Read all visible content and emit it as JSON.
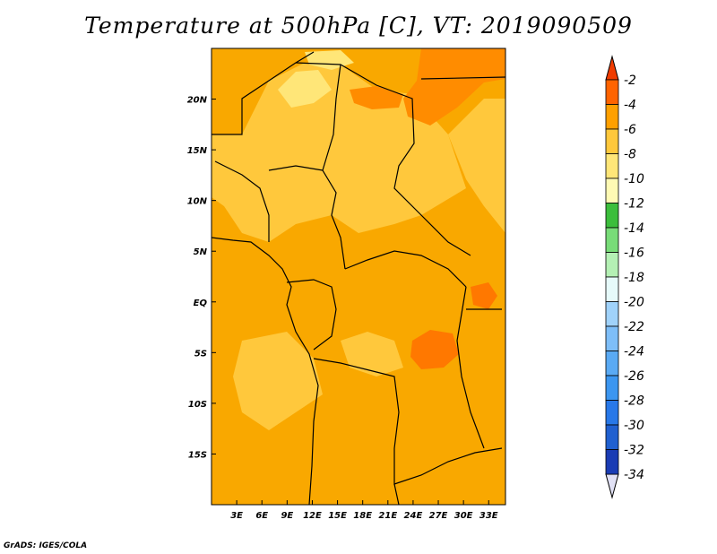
{
  "title": "Temperature at 500hPa [C], VT: 2019090509",
  "credit": "GrADS: IGES/COLA",
  "map": {
    "variable": "Temperature at 500hPa",
    "units": "C",
    "valid_time": "2019090509",
    "lon_range": [
      0,
      35
    ],
    "lat_range": [
      -20,
      25
    ],
    "background_color": "#f9a800",
    "lon_ticks": [
      {
        "value": 3,
        "label": "3E"
      },
      {
        "value": 6,
        "label": "6E"
      },
      {
        "value": 9,
        "label": "9E"
      },
      {
        "value": 12,
        "label": "12E"
      },
      {
        "value": 15,
        "label": "15E"
      },
      {
        "value": 18,
        "label": "18E"
      },
      {
        "value": 21,
        "label": "21E"
      },
      {
        "value": 24,
        "label": "24E"
      },
      {
        "value": 27,
        "label": "27E"
      },
      {
        "value": 30,
        "label": "30E"
      },
      {
        "value": 33,
        "label": "33E"
      }
    ],
    "lat_ticks": [
      {
        "value": 20,
        "label": "20N"
      },
      {
        "value": 15,
        "label": "15N"
      },
      {
        "value": 10,
        "label": "10N"
      },
      {
        "value": 5,
        "label": "5N"
      },
      {
        "value": 0,
        "label": "EQ"
      },
      {
        "value": -5,
        "label": "5S"
      },
      {
        "value": -10,
        "label": "10S"
      },
      {
        "value": -15,
        "label": "15S"
      }
    ]
  },
  "colorbar": {
    "levels": [
      {
        "value": -34,
        "label": "-34",
        "color": "#0a0a78"
      },
      {
        "value": -32,
        "label": "-32",
        "color": "#1a3cb4"
      },
      {
        "value": -30,
        "label": "-30",
        "color": "#2060d0"
      },
      {
        "value": -28,
        "label": "-28",
        "color": "#2878e8"
      },
      {
        "value": -26,
        "label": "-26",
        "color": "#3c96f0"
      },
      {
        "value": -24,
        "label": "-24",
        "color": "#5aaaf4"
      },
      {
        "value": -22,
        "label": "-22",
        "color": "#7ebef8"
      },
      {
        "value": -20,
        "label": "-20",
        "color": "#a0d2fa"
      },
      {
        "value": -18,
        "label": "-18",
        "color": "#e6fafa"
      },
      {
        "value": -16,
        "label": "-16",
        "color": "#b4f0b4"
      },
      {
        "value": -14,
        "label": "-14",
        "color": "#78dc78"
      },
      {
        "value": -12,
        "label": "-12",
        "color": "#3cbe3c"
      },
      {
        "value": -10,
        "label": "-10",
        "color": "#fffab4"
      },
      {
        "value": -8,
        "label": "-8",
        "color": "#ffe678"
      },
      {
        "value": -6,
        "label": "-6",
        "color": "#ffc83c"
      },
      {
        "value": -4,
        "label": "-4",
        "color": "#ffa000"
      },
      {
        "value": -2,
        "label": "-2",
        "color": "#ff6400"
      }
    ],
    "under_color": "#e1e1f5",
    "over_color": "#f03c00"
  }
}
